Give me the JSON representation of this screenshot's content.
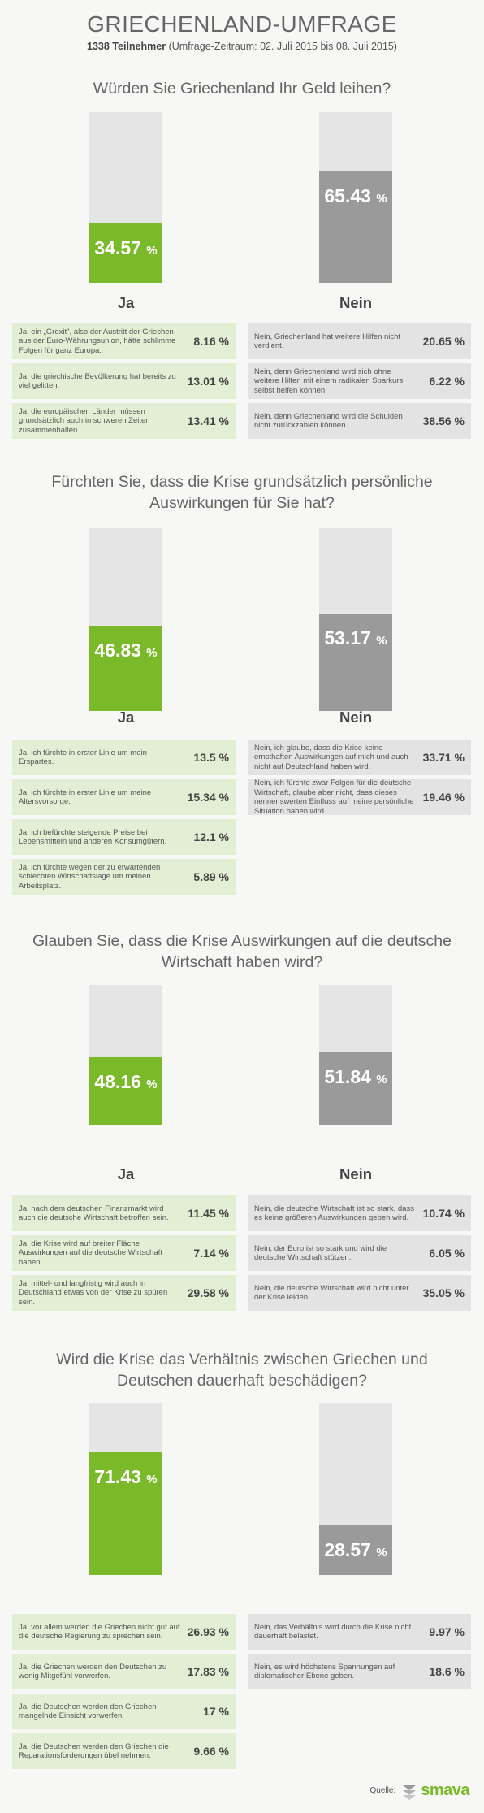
{
  "title": "GRIECHENLAND-UMFRAGE",
  "subtitle": {
    "participants": "1338 Teilnehmer",
    "period": "(Umfrage-Zeitraum: 02. Juli 2015 bis 08. Juli 2015)"
  },
  "chart_data": [
    {
      "type": "bar",
      "title": "Würden Sie Griechenland Ihr Geld leihen?",
      "categories": [
        "Ja",
        "Nein"
      ],
      "values": [
        34.57,
        65.43
      ],
      "unit": "%",
      "ylim": [
        0,
        100
      ],
      "colors": [
        "#7ab929",
        "#9a9a9a"
      ],
      "reasons": {
        "ja": [
          {
            "text": "Ja, ein „Grexit\", also der Austritt der Griechen aus der Euro-Währungsunion, hätte schlimme Folgen für ganz Europa.",
            "value": "8.16 %"
          },
          {
            "text": "Ja, die griechische Bevölkerung hat bereits zu viel gelitten.",
            "value": "13.01 %"
          },
          {
            "text": "Ja, die europäischen Länder müssen grundsätzlich auch in schweren Zeiten zusammenhalten.",
            "value": "13.41 %"
          }
        ],
        "nein": [
          {
            "text": "Nein, Griechenland hat weitere Hilfen nicht verdient.",
            "value": "20.65 %"
          },
          {
            "text": "Nein, denn Griechenland wird sich ohne weitere Hilfen mit einem radikalen Sparkurs selbst helfen können.",
            "value": "6.22 %"
          },
          {
            "text": "Nein, denn Griechenland wird die Schulden nicht zurückzahlen können.",
            "value": "38.56 %"
          }
        ]
      }
    },
    {
      "type": "bar",
      "title": "Fürchten Sie, dass die Krise grundsätzlich persönliche Auswirkungen für Sie hat?",
      "categories": [
        "Ja",
        "Nein"
      ],
      "values": [
        46.83,
        53.17
      ],
      "unit": "%",
      "ylim": [
        0,
        100
      ],
      "colors": [
        "#7ab929",
        "#9a9a9a"
      ],
      "reasons": {
        "ja": [
          {
            "text": "Ja, ich fürchte in erster Linie um mein Erspartes.",
            "value": "13.5 %"
          },
          {
            "text": "Ja, ich fürchte in erster Linie um meine Altersvorsorge.",
            "value": "15.34 %"
          },
          {
            "text": "Ja, ich befürchte steigende Preise bei Lebensmitteln und anderen Konsumgütern.",
            "value": "12.1 %"
          },
          {
            "text": "Ja, ich fürchte wegen der zu erwartenden schlechten Wirtschaftslage um meinen Arbeitsplatz.",
            "value": "5.89 %"
          }
        ],
        "nein": [
          {
            "text": "Nein, ich glaube, dass die Krise keine ernsthaften Auswirkungen auf mich und auch nicht auf Deutschland haben wird.",
            "value": "33.71 %"
          },
          {
            "text": "Nein, ich fürchte zwar Folgen für die deutsche Wirtschaft, glaube aber nicht, dass dieses nennenswerten Einfluss auf meine persönliche Situation haben wird.",
            "value": "19.46 %"
          }
        ]
      }
    },
    {
      "type": "bar",
      "title": "Glauben Sie, dass die Krise Auswirkungen auf die deutsche Wirtschaft haben wird?",
      "categories": [
        "Ja",
        "Nein"
      ],
      "values": [
        48.16,
        51.84
      ],
      "unit": "%",
      "ylim": [
        0,
        100
      ],
      "colors": [
        "#7ab929",
        "#9a9a9a"
      ],
      "reasons": {
        "ja": [
          {
            "text": "Ja, nach dem deutschen Finanzmarkt wird auch die deutsche Wirtschaft betroffen sein.",
            "value": "11.45 %"
          },
          {
            "text": "Ja, die Krise wird auf breiter Fläche Auswirkungen auf die deutsche Wirtschaft haben.",
            "value": "7.14 %"
          },
          {
            "text": "Ja, mittel- und langfristig wird auch in Deutschland etwas von der Krise zu spüren sein.",
            "value": "29.58 %"
          }
        ],
        "nein": [
          {
            "text": "Nein, die deutsche Wirtschaft ist so stark, dass es keine größeren Auswirkungen geben wird.",
            "value": "10.74 %"
          },
          {
            "text": "Nein, der Euro ist so stark und wird die deutsche Wirtschaft stützen.",
            "value": "6.05 %"
          },
          {
            "text": "Nein, die deutsche Wirtschaft wird nicht unter der Krise leiden.",
            "value": "35.05 %"
          }
        ]
      }
    },
    {
      "type": "bar",
      "title": "Wird die Krise das Verhältnis zwischen Griechen und Deutschen dauerhaft beschädigen?",
      "categories": [
        "Ja",
        "Nein"
      ],
      "values": [
        71.43,
        28.57
      ],
      "unit": "%",
      "ylim": [
        0,
        100
      ],
      "colors": [
        "#7ab929",
        "#9a9a9a"
      ],
      "reasons": {
        "ja": [
          {
            "text": "Ja, vor allem werden die Griechen nicht gut auf die deutsche Regierung zu sprechen sein.",
            "value": "26.93 %"
          },
          {
            "text": "Ja, die Griechen werden den Deutschen zu wenig Mitgefühl vorwerfen.",
            "value": "17.83 %"
          },
          {
            "text": "Ja, die Deutschen werden den Griechen mangelnde Einsicht vorwerfen.",
            "value": "17 %"
          },
          {
            "text": "Ja, die Deutschen werden den Griechen die Reparationsforderungen übel nehmen.",
            "value": "9.66 %"
          }
        ],
        "nein": [
          {
            "text": "Nein, das Verhältnis wird durch die Krise nicht dauerhaft belastet.",
            "value": "9.97 %"
          },
          {
            "text": "Nein, es wird höchstens Spannungen auf diplomatischer Ebene geben.",
            "value": "18.6 %"
          }
        ]
      }
    }
  ],
  "footer": {
    "source_label": "Quelle:",
    "brand": "smava",
    "brand_icon": "smava-logo-icon"
  }
}
